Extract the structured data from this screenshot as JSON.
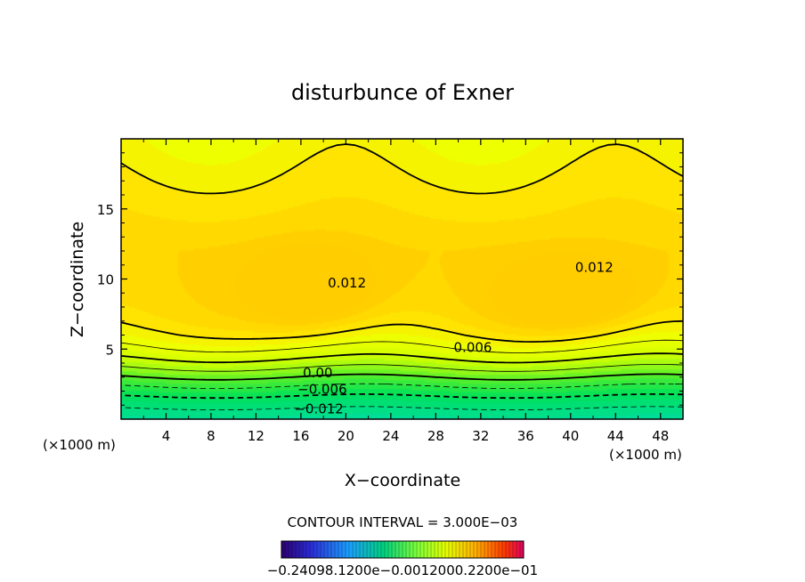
{
  "chart_data": {
    "type": "contour",
    "title": "disturbunce of Exner",
    "xlabel": "X−coordinate",
    "ylabel": "Z−coordinate",
    "x_unit_left": "(×1000 m)",
    "x_unit_right": "(×1000 m)",
    "xlim": [
      0,
      50
    ],
    "ylim": [
      0,
      20
    ],
    "x_ticks": [
      4,
      8,
      12,
      16,
      20,
      24,
      28,
      32,
      36,
      40,
      44,
      48
    ],
    "y_ticks": [
      5,
      10,
      15
    ],
    "contour_interval_text": "CONTOUR INTERVAL = 3.000E−03",
    "colorbar_text": "−0.24098.1200e−0.0012000.2200e−01",
    "contour_labels": [
      {
        "text": "0.012",
        "x": 20.1,
        "z": 9.4
      },
      {
        "text": "0.012",
        "x": 42.1,
        "z": 10.5
      },
      {
        "text": "0.006",
        "x": 31.3,
        "z": 4.8
      },
      {
        "text": "0.00",
        "x": 17.5,
        "z": 3.0
      },
      {
        "text": "−0.006",
        "x": 17.9,
        "z": 1.8
      },
      {
        "text": "−0.012",
        "x": 17.6,
        "z": 0.4
      }
    ],
    "contour_levels": [
      -0.018,
      -0.015,
      -0.012,
      -0.009,
      -0.006,
      -0.003,
      0.0,
      0.003,
      0.006,
      0.009,
      0.012
    ],
    "field_range": [
      -0.024,
      0.015
    ],
    "colors": {
      "low": "#1e90ff",
      "mid_low": "#00e676",
      "mid": "#66ff33",
      "high": "#e0ff00",
      "peak": "#ffd500"
    }
  }
}
